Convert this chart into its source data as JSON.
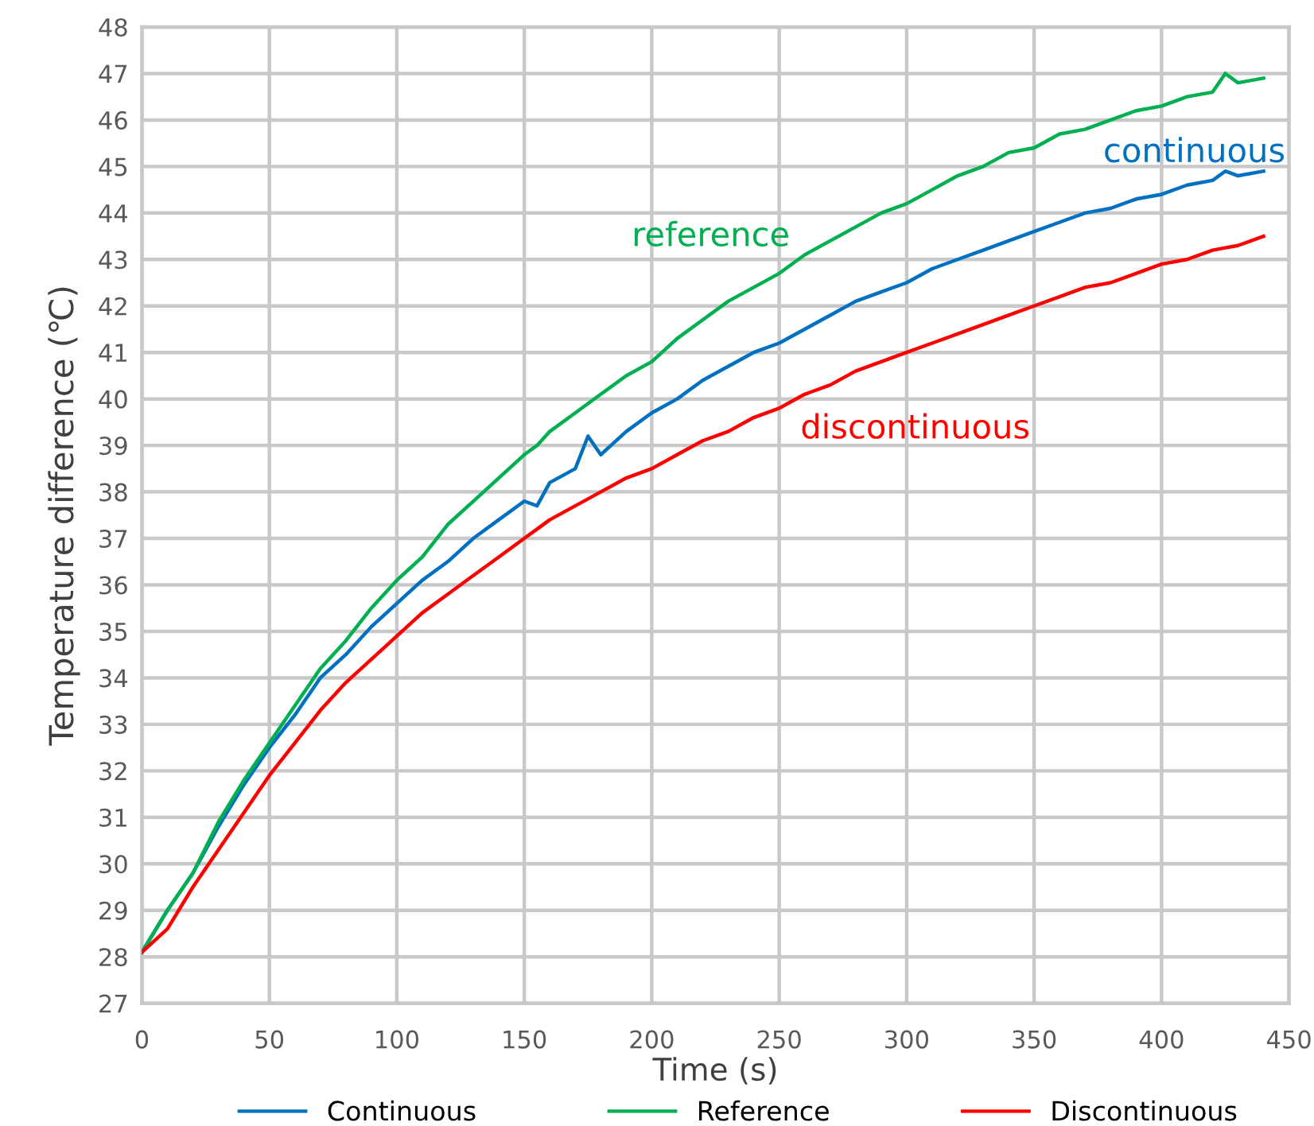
{
  "chart_data": {
    "type": "line",
    "xlabel": "Time (s)",
    "ylabel": "Temperature difference (℃)",
    "xlim": [
      0,
      450
    ],
    "xticks": [
      0,
      50,
      100,
      150,
      200,
      250,
      300,
      350,
      400,
      450
    ],
    "ylim": [
      27,
      48
    ],
    "yticks": [
      27,
      28,
      29,
      30,
      31,
      32,
      33,
      34,
      35,
      36,
      37,
      38,
      39,
      40,
      41,
      42,
      43,
      44,
      45,
      46,
      47,
      48
    ],
    "grid": true,
    "legend": "bottom",
    "marker": "none",
    "line_style": "solid",
    "x": [
      0,
      10,
      20,
      30,
      40,
      50,
      60,
      70,
      80,
      90,
      100,
      110,
      120,
      130,
      140,
      150,
      155,
      160,
      170,
      175,
      180,
      190,
      200,
      210,
      220,
      230,
      240,
      250,
      260,
      270,
      280,
      290,
      300,
      310,
      320,
      330,
      340,
      350,
      360,
      370,
      380,
      390,
      400,
      410,
      420,
      425,
      430,
      440
    ],
    "series": [
      {
        "name": "Continuous",
        "color": "#0070c0",
        "values": [
          28.1,
          29.0,
          29.8,
          30.8,
          31.7,
          32.5,
          33.2,
          34.0,
          34.5,
          35.1,
          35.6,
          36.1,
          36.5,
          37.0,
          37.4,
          37.8,
          37.7,
          38.2,
          38.5,
          39.2,
          38.8,
          39.3,
          39.7,
          40.0,
          40.4,
          40.7,
          41.0,
          41.2,
          41.5,
          41.8,
          42.1,
          42.3,
          42.5,
          42.8,
          43.0,
          43.2,
          43.4,
          43.6,
          43.8,
          44.0,
          44.1,
          44.3,
          44.4,
          44.6,
          44.7,
          44.9,
          44.8,
          44.9
        ]
      },
      {
        "name": "Reference",
        "color": "#00b050",
        "values": [
          28.1,
          29.0,
          29.8,
          30.9,
          31.8,
          32.6,
          33.4,
          34.2,
          34.8,
          35.5,
          36.1,
          36.6,
          37.3,
          37.8,
          38.3,
          38.8,
          39.0,
          39.3,
          39.7,
          39.9,
          40.1,
          40.5,
          40.8,
          41.3,
          41.7,
          42.1,
          42.4,
          42.7,
          43.1,
          43.4,
          43.7,
          44.0,
          44.2,
          44.5,
          44.8,
          45.0,
          45.3,
          45.4,
          45.7,
          45.8,
          46.0,
          46.2,
          46.3,
          46.5,
          46.6,
          47.0,
          46.8,
          46.9
        ]
      },
      {
        "name": "Discontinuous",
        "color": "#ff0000",
        "values": [
          28.1,
          28.6,
          29.5,
          30.3,
          31.1,
          31.9,
          32.6,
          33.3,
          33.9,
          34.4,
          34.9,
          35.4,
          35.8,
          36.2,
          36.6,
          37.0,
          37.2,
          37.4,
          37.7,
          37.85,
          38.0,
          38.3,
          38.5,
          38.8,
          39.1,
          39.3,
          39.6,
          39.8,
          40.1,
          40.3,
          40.6,
          40.8,
          41.0,
          41.2,
          41.4,
          41.6,
          41.8,
          42.0,
          42.2,
          42.4,
          42.5,
          42.7,
          42.9,
          43.0,
          43.2,
          43.25,
          43.3,
          43.5
        ]
      }
    ],
    "annotations": [
      "continuous",
      "reference",
      "discontinuous"
    ]
  }
}
